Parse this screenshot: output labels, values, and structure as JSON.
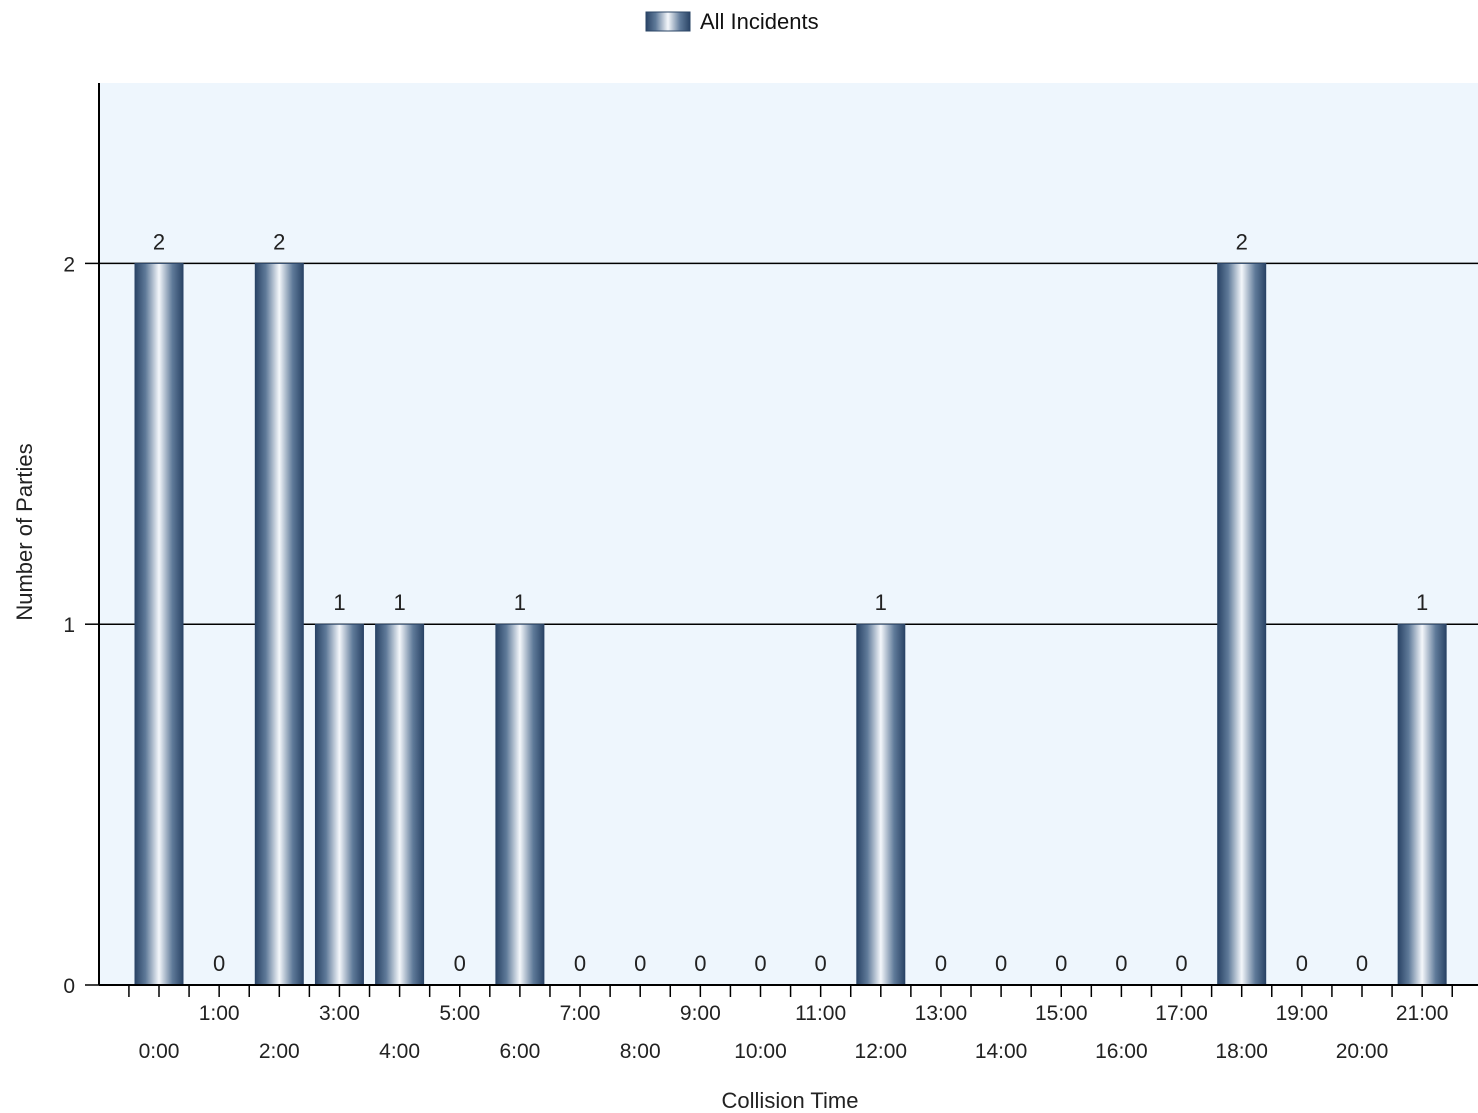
{
  "chart_data": {
    "type": "bar",
    "xlabel": "Collision Time",
    "ylabel": "Number of Parties",
    "legend": {
      "position": "top-center",
      "entries": [
        "All Incidents"
      ]
    },
    "categories": [
      "0:00",
      "1:00",
      "2:00",
      "3:00",
      "4:00",
      "5:00",
      "6:00",
      "7:00",
      "8:00",
      "9:00",
      "10:00",
      "11:00",
      "12:00",
      "13:00",
      "14:00",
      "15:00",
      "16:00",
      "17:00",
      "18:00",
      "19:00",
      "20:00",
      "21:00"
    ],
    "series": [
      {
        "name": "All Incidents",
        "values": [
          2,
          0,
          2,
          1,
          1,
          0,
          1,
          0,
          0,
          0,
          0,
          0,
          1,
          0,
          0,
          0,
          0,
          0,
          2,
          0,
          0,
          1
        ]
      }
    ],
    "ylim": [
      0,
      2.5
    ],
    "yticks": [
      0,
      1,
      2
    ],
    "grid": true,
    "colors": {
      "plot_bg": "#eef6fd",
      "bar_dark": "#2f4b6e",
      "bar_light": "#f3f6fa",
      "grid": "#000000"
    }
  }
}
